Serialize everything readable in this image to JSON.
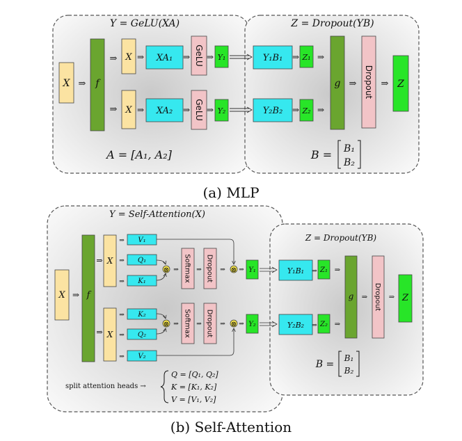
{
  "colors": {
    "panel_edge": "#f7f7f7",
    "panel_center": "#c9c9c9",
    "input": "#fbe3a2",
    "green_dark": "#6aa52f",
    "cyan": "#36e8ef",
    "pink": "#f2c4c7",
    "green_bright": "#28e528",
    "border": "#444444"
  },
  "mlp": {
    "caption": "(a) MLP",
    "left_title": "Y = GeLU(XA)",
    "right_title": "Z = Dropout(YB)",
    "left_eq": "A = [A₁, A₂]",
    "right_eq_lhs": "B =",
    "right_eq_top": "B₁",
    "right_eq_bot": "B₂",
    "x_input": "X",
    "f": "f",
    "x_top": "X",
    "x_bot": "X",
    "xa_top": "XA₁",
    "xa_bot": "XA₂",
    "gelu_top": "GeLU",
    "gelu_bot": "GeLU",
    "y_top": "Y₁",
    "y_bot": "Y₂",
    "yb_top": "Y₁B₁",
    "yb_bot": "Y₂B₂",
    "z_top": "Z₁",
    "z_bot": "Z₂",
    "g": "g",
    "dropout": "Dropout",
    "z_out": "Z"
  },
  "attn": {
    "caption": "(b) Self-Attention",
    "left_title": "Y = Self-Attention(X)",
    "right_title": "Z = Dropout(YB)",
    "x_input": "X",
    "f": "f",
    "x_top": "X",
    "x_bot": "X",
    "v1": "V₁",
    "q1": "Q₁",
    "k1": "K₁",
    "k2": "K₂",
    "q2": "Q₂",
    "v2": "V₂",
    "otimes": "⊗",
    "softmax_top": "Softmax",
    "softmax_bot": "Softmax",
    "dropout_top": "Dropout",
    "dropout_bot": "Dropout",
    "y_top": "Y₁",
    "y_bot": "Y₂",
    "yb_top": "Y₁B₁",
    "yb_bot": "Y₂B₂",
    "z_top": "Z₁",
    "z_bot": "Z₂",
    "g": "g",
    "dropout": "Dropout",
    "z_out": "Z",
    "right_eq_lhs": "B =",
    "right_eq_top": "B₁",
    "right_eq_bot": "B₂",
    "split_label": "split attention heads →",
    "split_q": "Q = [Q₁, Q₂]",
    "split_k": "K = [K₁, K₂]",
    "split_v": "V = [V₁, V₂]"
  }
}
